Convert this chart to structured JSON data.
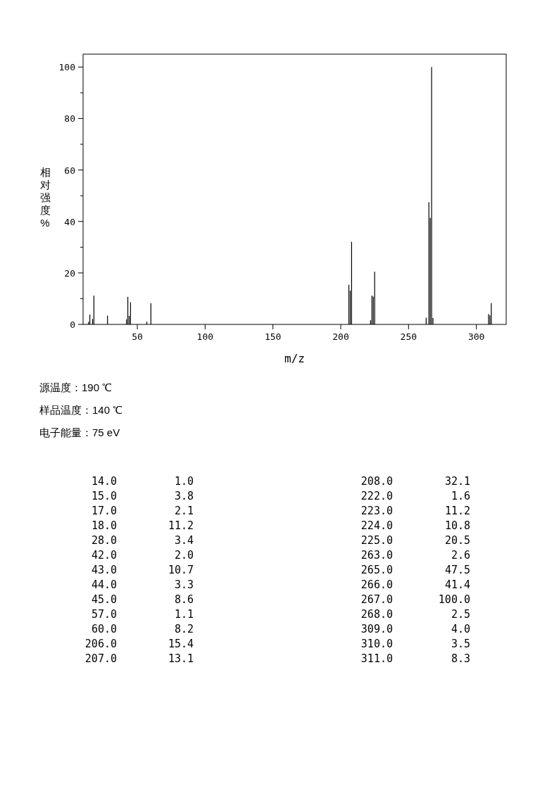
{
  "chart_data": [
    {
      "type": "bar",
      "xlabel": "m/z",
      "ylabel": "相对强度%",
      "x": [
        14,
        15,
        17,
        18,
        28,
        42,
        43,
        44,
        45,
        57,
        60,
        206,
        207,
        208,
        222,
        223,
        224,
        225,
        263,
        265,
        266,
        267,
        268,
        309,
        310,
        311
      ],
      "values": [
        1.0,
        3.8,
        2.1,
        11.2,
        3.4,
        2.0,
        10.7,
        3.3,
        8.6,
        1.1,
        8.2,
        15.4,
        13.1,
        32.1,
        1.6,
        11.2,
        10.8,
        20.5,
        2.6,
        47.5,
        41.4,
        100.0,
        2.5,
        4.0,
        3.5,
        8.3
      ],
      "color": "#000000",
      "xlim": [
        10,
        322
      ],
      "xticks": [
        50,
        100,
        150,
        200,
        250,
        300
      ],
      "ylim": [
        0,
        105
      ],
      "yticks": [
        0,
        {
          "value": 10,
          "label": null
        },
        20,
        {
          "value": 30,
          "label": null
        },
        40,
        {
          "value": 50,
          "label": null
        },
        60,
        {
          "value": 70,
          "label": null
        },
        80,
        {
          "value": 90,
          "label": null
        },
        100
      ],
      "annotations": [
        "源温度：190 ℃",
        "样品温度：140 ℃",
        "电子能量：75 eV"
      ]
    },
    {
      "type": "other",
      "annotations": [
        "14.0",
        "1.0",
        "15.0",
        "3.8",
        "17.0",
        "2.1",
        "18.0",
        "11.2",
        "28.0",
        "3.4",
        "42.0",
        "2.0",
        "43.0",
        "10.7",
        "44.0",
        "3.3",
        "45.0",
        "8.6",
        "57.0",
        "1.1",
        "60.0",
        "8.2",
        "206.0",
        "15.4",
        "207.0",
        "13.1",
        "208.0",
        "32.1",
        "222.0",
        "1.6",
        "223.0",
        "11.2",
        "224.0",
        "10.8",
        "225.0",
        "20.5",
        "263.0",
        "2.6",
        "265.0",
        "47.5",
        "266.0",
        "41.4",
        "267.0",
        "100.0",
        "268.0",
        "2.5",
        "309.0",
        "4.0",
        "310.0",
        "3.5",
        "311.0",
        "8.3"
      ]
    }
  ]
}
